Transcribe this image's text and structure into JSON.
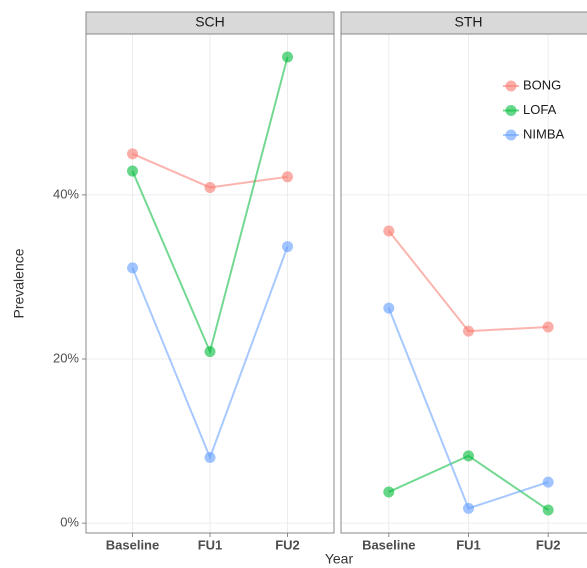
{
  "chart_data": [
    {
      "type": "line",
      "title": "SCH",
      "x_label": "Year",
      "y_label": "Prevalence",
      "categories": [
        "Baseline",
        "FU1",
        "FU2"
      ],
      "series": [
        {
          "name": "BONG",
          "color": "#F8766D",
          "values": [
            45.0,
            40.9,
            42.2
          ]
        },
        {
          "name": "LOFA",
          "color": "#00BA38",
          "values": [
            42.9,
            20.9,
            56.8
          ]
        },
        {
          "name": "NIMBA",
          "color": "#619CFF",
          "values": [
            31.1,
            8.0,
            33.7
          ]
        }
      ],
      "ylim": [
        -1.2,
        59.6
      ],
      "yticks": [
        {
          "value": 0,
          "label": "0%"
        },
        {
          "value": 20,
          "label": "20%"
        },
        {
          "value": 40,
          "label": "40%"
        }
      ],
      "grid": true
    },
    {
      "type": "line",
      "title": "STH",
      "categories": [
        "Baseline",
        "FU1",
        "FU2"
      ],
      "series": [
        {
          "name": "BONG",
          "color": "#F8766D",
          "values": [
            35.6,
            23.4,
            23.9
          ]
        },
        {
          "name": "LOFA",
          "color": "#00BA38",
          "values": [
            3.8,
            8.2,
            1.6
          ]
        },
        {
          "name": "NIMBA",
          "color": "#619CFF",
          "values": [
            26.2,
            1.8,
            5.0
          ]
        }
      ],
      "ylim": [
        -1.2,
        59.6
      ],
      "yticks": [
        {
          "value": 0,
          "label": "0%"
        },
        {
          "value": 20,
          "label": "20%"
        },
        {
          "value": 40,
          "label": "40%"
        }
      ],
      "grid": true,
      "legend": "top-right"
    }
  ]
}
